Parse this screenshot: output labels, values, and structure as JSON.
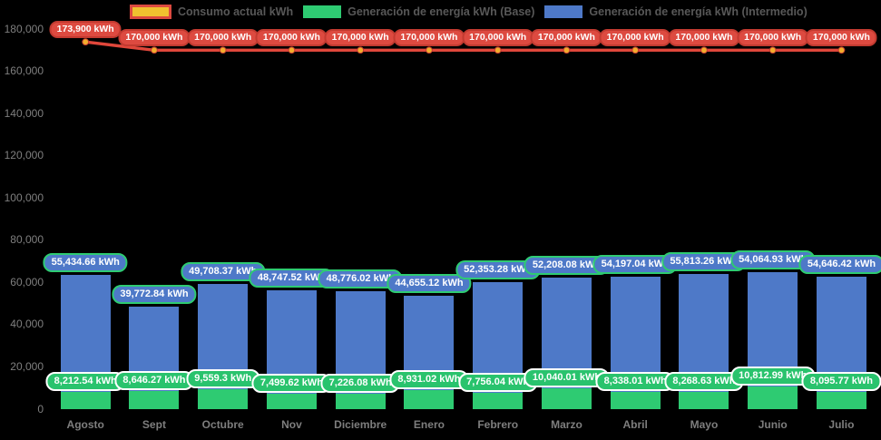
{
  "colors": {
    "background": "#000000",
    "bar_base_green": "#2ecb72",
    "bar_intermedio_blue": "#4e79c8",
    "line_red": "#e0473b",
    "line_pill_bg": "#dd4a40",
    "line_pill_border": "#c23a30",
    "line_marker_yellow": "#f2ad2d",
    "base_pill_bg": "#29c36d",
    "base_pill_border": "#ffffff",
    "inter_pill_bg": "#4e79c8",
    "inter_pill_border": "#2ecb72",
    "consumo_swatch_fill": "#f0c12f",
    "consumo_swatch_border": "#dd4a40",
    "legend_text": "#585858",
    "axis_text": "#7f7f7f",
    "pill_text": "#ffffff"
  },
  "legend": {
    "items": [
      {
        "id": "consumo",
        "label": "Consumo actual kWh"
      },
      {
        "id": "base",
        "label": "Generación de energía kWh (Base)"
      },
      {
        "id": "intermedio",
        "label": "Generación de energía kWh (Intermedio)"
      }
    ]
  },
  "chart_data": {
    "type": "combo-stacked-bar-line",
    "categories": [
      "Agosto",
      "Sept",
      "Octubre",
      "Nov",
      "Diciembre",
      "Enero",
      "Febrero",
      "Marzo",
      "Abril",
      "Mayo",
      "Junio",
      "Julio"
    ],
    "series": [
      {
        "name": "Consumo actual kWh",
        "type": "line",
        "values": [
          173900,
          170000,
          170000,
          170000,
          170000,
          170000,
          170000,
          170000,
          170000,
          170000,
          170000,
          170000
        ],
        "labels": [
          "173,900 kWh",
          "170,000 kWh",
          "170,000 kWh",
          "170,000 kWh",
          "170,000 kWh",
          "170,000 kWh",
          "170,000 kWh",
          "170,000 kWh",
          "170,000 kWh",
          "170,000 kWh",
          "170,000 kWh",
          "170,000 kWh"
        ]
      },
      {
        "name": "Generación de energía kWh (Base)",
        "type": "bar",
        "stack_order": 1,
        "values": [
          8212.54,
          8646.27,
          9559.3,
          7499.62,
          7226.08,
          8931.02,
          7756.04,
          10040.01,
          8338.01,
          8268.63,
          10812.99,
          8095.77
        ],
        "labels": [
          "8,212.54 kWh",
          "8,646.27 kWh",
          "9,559.3 kWh",
          "7,499.62 kWh",
          "7,226.08 kWh",
          "8,931.02 kWh",
          "7,756.04 kWh",
          "10,040.01 kWh",
          "8,338.01 kWh",
          "8,268.63 kWh",
          "10,812.99 kWh",
          "8,095.77 kWh"
        ]
      },
      {
        "name": "Generación de energía kWh (Intermedio)",
        "type": "bar",
        "stack_order": 2,
        "values": [
          55434.66,
          39772.84,
          49708.37,
          48747.52,
          48776.02,
          44655.12,
          52353.28,
          52208.08,
          54197.04,
          55813.26,
          54064.93,
          54646.42
        ],
        "labels": [
          "55,434.66 kWh",
          "39,772.84 kWh",
          "49,708.37 kWh",
          "48,747.52 kWh",
          "48,776.02 kWh",
          "44,655.12 kWh",
          "52,353.28 kWh",
          "52,208.08 kWh",
          "54,197.04 kWh",
          "55,813.26 kWh",
          "54,064.93 kWh",
          "54,646.42 kWh"
        ]
      }
    ],
    "ylim": [
      0,
      180000
    ],
    "ytick_step": 20000,
    "ytick_labels_top_to_bottom": [
      "180,000",
      "160,000",
      "140,000",
      "120,000",
      "100,000",
      "80,000",
      "60,000",
      "40,000",
      "20,000",
      "0"
    ],
    "grid": "off",
    "legend_position": "top-center"
  }
}
